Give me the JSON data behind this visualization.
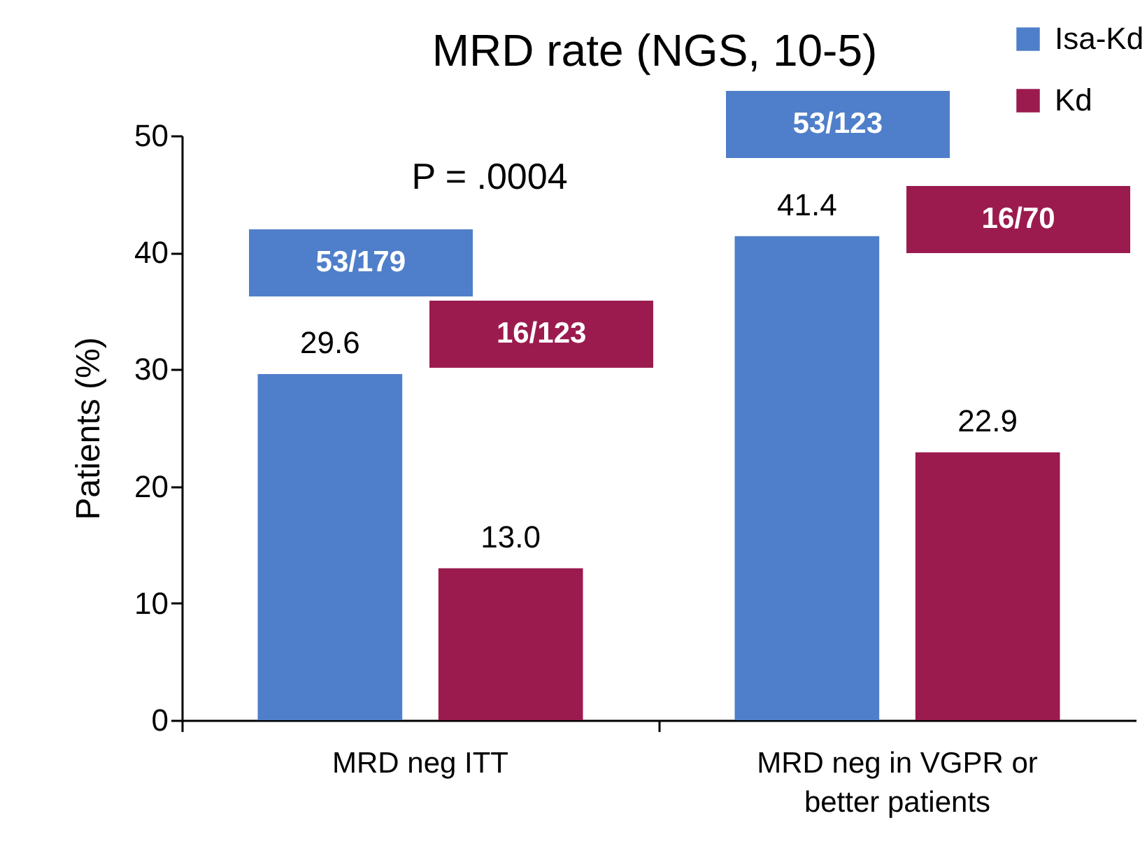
{
  "chart_data": {
    "type": "bar",
    "title": "MRD rate (NGS, 10-5)",
    "ylabel": "Patients (%)",
    "categories": [
      "MRD neg ITT",
      "MRD neg in VGPR or better patients"
    ],
    "series": [
      {
        "name": "Isa-Kd",
        "color": "#4f7fca",
        "values": [
          29.6,
          41.4
        ],
        "value_labels": [
          "29.6",
          "41.4"
        ]
      },
      {
        "name": "Kd",
        "color": "#9b1b4f",
        "values": [
          13.0,
          22.9
        ],
        "value_labels": [
          "13.0",
          "22.9"
        ]
      }
    ],
    "ylim": [
      0,
      50
    ],
    "yticks": [
      0,
      10,
      20,
      30,
      40,
      50
    ],
    "grid": false,
    "legend": "top right",
    "annotations": [
      "P = .0004",
      "53/179",
      "16/123",
      "53/123",
      "16/70"
    ]
  }
}
